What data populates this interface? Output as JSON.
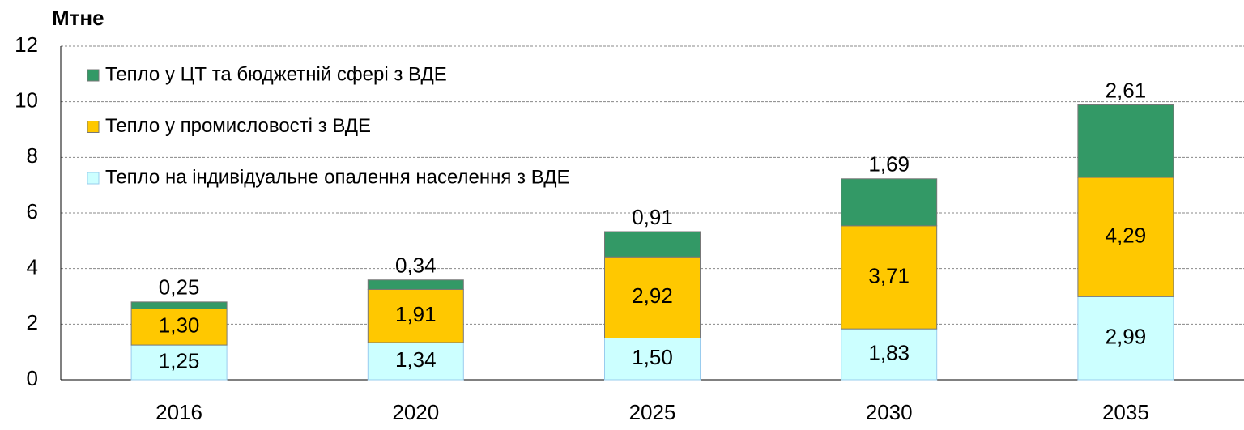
{
  "chart_data": {
    "type": "stacked_bar",
    "y_label": "Мтне",
    "categories": [
      "2016",
      "2020",
      "2025",
      "2030",
      "2035"
    ],
    "series": [
      {
        "name": "Тепло на індивідуальне опалення населення з ВДЕ",
        "color": "#ccffff",
        "values": [
          1.25,
          1.34,
          1.5,
          1.83,
          2.99
        ],
        "value_labels": [
          "1,25",
          "1,34",
          "1,50",
          "1,83",
          "2,99"
        ]
      },
      {
        "name": "Тепло у промисловості з ВДЕ",
        "color": "#ffc800",
        "values": [
          1.3,
          1.91,
          2.92,
          3.71,
          4.29
        ],
        "value_labels": [
          "1,30",
          "1,91",
          "2,92",
          "3,71",
          "4,29"
        ]
      },
      {
        "name": "Тепло у ЦТ та бюджетній сфері з ВДЕ",
        "color": "#339966",
        "values": [
          0.25,
          0.34,
          0.91,
          1.69,
          2.61
        ],
        "value_labels": [
          "0,25",
          "0,34",
          "0,91",
          "1,69",
          "2,61"
        ]
      }
    ],
    "ylim": [
      0,
      12
    ],
    "yticks": [
      0,
      2,
      4,
      6,
      8,
      10,
      12
    ],
    "grid": true,
    "legend": "upper left"
  }
}
